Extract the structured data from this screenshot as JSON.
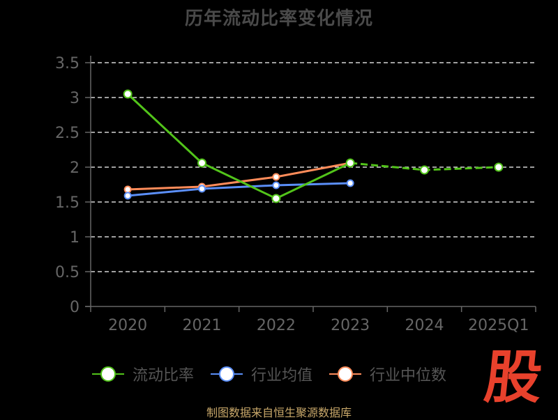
{
  "title": "历年流动比率变化情况",
  "footer": "制图数据来自恒生聚源数据库",
  "logo_text": "股",
  "chart_data": {
    "type": "line",
    "title": "历年流动比率变化情况",
    "categories": [
      "2020",
      "2021",
      "2022",
      "2023",
      "2024",
      "2025Q1"
    ],
    "ylim": [
      0,
      3.5
    ],
    "yticks": [
      "0",
      "0.5",
      "1",
      "1.5",
      "2",
      "2.5",
      "3",
      "3.5"
    ],
    "grid": true,
    "legend_position": "bottom",
    "series": [
      {
        "name": "流动比率",
        "color": "#52c41a",
        "values": [
          3.05,
          2.06,
          1.55,
          2.06,
          1.96,
          2.0
        ]
      },
      {
        "name": "行业均值",
        "color": "#5b8ff9",
        "values": [
          1.59,
          1.69,
          1.74,
          1.77,
          null,
          null
        ]
      },
      {
        "name": "行业中位数",
        "color": "#ff8c5a",
        "values": [
          1.68,
          1.72,
          1.86,
          2.06,
          null,
          null
        ]
      }
    ]
  },
  "colors": {
    "background": "#000000",
    "axis": "#666666",
    "grid": "#ffffff",
    "tick_text": "#666666"
  }
}
